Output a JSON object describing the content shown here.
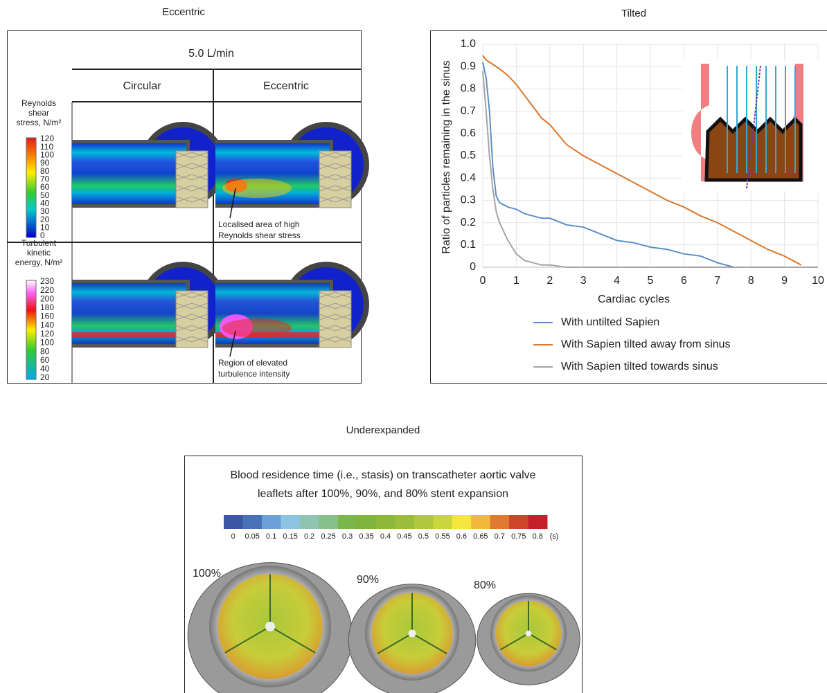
{
  "eccentric": {
    "title": "Eccentric",
    "flow": "5.0 L/min",
    "columns": [
      "Circular",
      "Eccentric"
    ],
    "rows": [
      {
        "scale_title": [
          "Reynolds",
          "shear",
          "stress, N/m²"
        ],
        "scale_labels": [
          "120",
          "110",
          "100",
          "90",
          "80",
          "70",
          "60",
          "50",
          "40",
          "30",
          "20",
          "10",
          "0"
        ],
        "annotation": [
          "Localised area of high",
          "Reynolds shear stress"
        ]
      },
      {
        "scale_title": [
          "Turbulent",
          "kinetic",
          "energy, N/m²"
        ],
        "scale_labels": [
          "230",
          "220",
          "200",
          "180",
          "160",
          "140",
          "120",
          "100",
          "80",
          "60",
          "40",
          "20"
        ],
        "annotation": [
          "Region of elevated",
          "turbulence intensity"
        ]
      }
    ]
  },
  "chart_data": {
    "type": "line",
    "title": "Tilted",
    "x_label": "Cardiac cycles",
    "y_label": "Ratio of particles remaining in the sinus",
    "x": [
      0,
      0.1,
      0.2,
      0.3,
      0.4,
      0.5,
      0.75,
      1,
      1.25,
      1.5,
      1.75,
      2,
      2.5,
      3,
      3.5,
      4,
      4.5,
      5,
      5.5,
      6,
      6.5,
      7,
      7.5,
      8,
      8.5,
      9,
      9.5,
      10
    ],
    "series": [
      {
        "name": "With untilted Sapien",
        "color": "#5b8fc7",
        "values": [
          0.92,
          0.85,
          0.7,
          0.45,
          0.32,
          0.29,
          0.27,
          0.26,
          0.24,
          0.23,
          0.22,
          0.22,
          0.19,
          0.18,
          0.15,
          0.12,
          0.11,
          0.09,
          0.08,
          0.06,
          0.05,
          0.02,
          0,
          0,
          0,
          0,
          0,
          0
        ]
      },
      {
        "name": "With Sapien tilted away from sinus",
        "color": "#d9772b",
        "values": [
          0.95,
          0.93,
          0.92,
          0.91,
          0.9,
          0.89,
          0.86,
          0.82,
          0.77,
          0.72,
          0.67,
          0.64,
          0.55,
          0.5,
          0.46,
          0.42,
          0.38,
          0.34,
          0.3,
          0.27,
          0.23,
          0.2,
          0.16,
          0.12,
          0.08,
          0.05,
          0.01,
          null
        ]
      },
      {
        "name": "With Sapien tilted towards sinus",
        "color": "#a5a5a5",
        "values": [
          0.88,
          0.7,
          0.5,
          0.35,
          0.25,
          0.2,
          0.12,
          0.06,
          0.03,
          0.02,
          0.01,
          0.01,
          0,
          0,
          0,
          0,
          0,
          0,
          0,
          0,
          0,
          0,
          0,
          0,
          0,
          0,
          0,
          0
        ]
      }
    ],
    "xlim": [
      0,
      10
    ],
    "ylim": [
      0,
      1
    ],
    "xticks": [
      0,
      1,
      2,
      3,
      4,
      5,
      6,
      7,
      8,
      9,
      10
    ],
    "yticks": [
      0,
      0.1,
      0.2,
      0.3,
      0.4,
      0.5,
      0.6,
      0.7,
      0.8,
      0.9,
      {
        "value": 1,
        "label": "1.0"
      }
    ],
    "grid": true,
    "legend": "bottom"
  },
  "underexpanded": {
    "title": "Underexpanded",
    "caption": [
      "Blood residence time (i.e., stasis) on transcatheter aortic valve",
      "leaflets after 100%, 90%, and 80% stent expansion"
    ],
    "scale_labels": [
      "0",
      "0.05",
      "0.1",
      "0.15",
      "0.2",
      "0.25",
      "0.3",
      "0.35",
      "0.4",
      "0.45",
      "0.5",
      "0.55",
      "0.6",
      "0.65",
      "0.7",
      "0.75",
      "0.8"
    ],
    "scale_unit": "(s)",
    "expansions": [
      "100%",
      "90%",
      "80%"
    ]
  }
}
